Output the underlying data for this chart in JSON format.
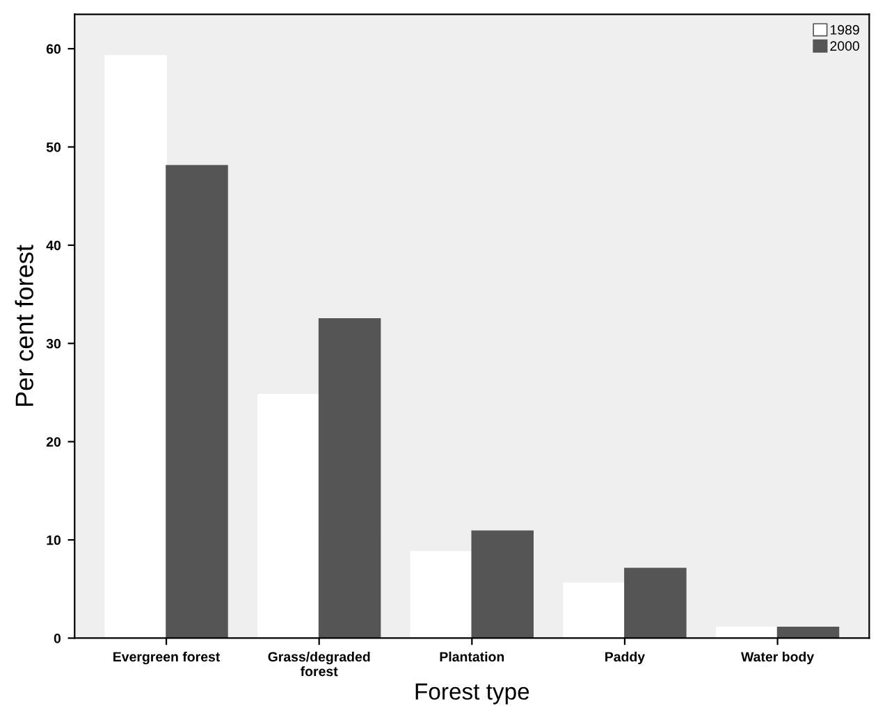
{
  "chart_data": {
    "type": "bar",
    "xlabel": "Forest type",
    "ylabel": "Per cent forest",
    "categories": [
      "Evergreen forest",
      "Grass/degraded\nforest",
      "Plantation",
      "Paddy",
      "Water body"
    ],
    "series": [
      {
        "name": "1989",
        "color": "#ffffff",
        "values": [
          59.3,
          24.8,
          8.8,
          5.6,
          1.1
        ]
      },
      {
        "name": "2000",
        "color": "#555555",
        "values": [
          48.1,
          32.5,
          10.9,
          7.1,
          1.1
        ]
      }
    ],
    "ylim": [
      0,
      63.5
    ],
    "yticks": [
      0,
      10,
      20,
      30,
      40,
      50,
      60
    ],
    "grid": false,
    "legend": "top right"
  }
}
